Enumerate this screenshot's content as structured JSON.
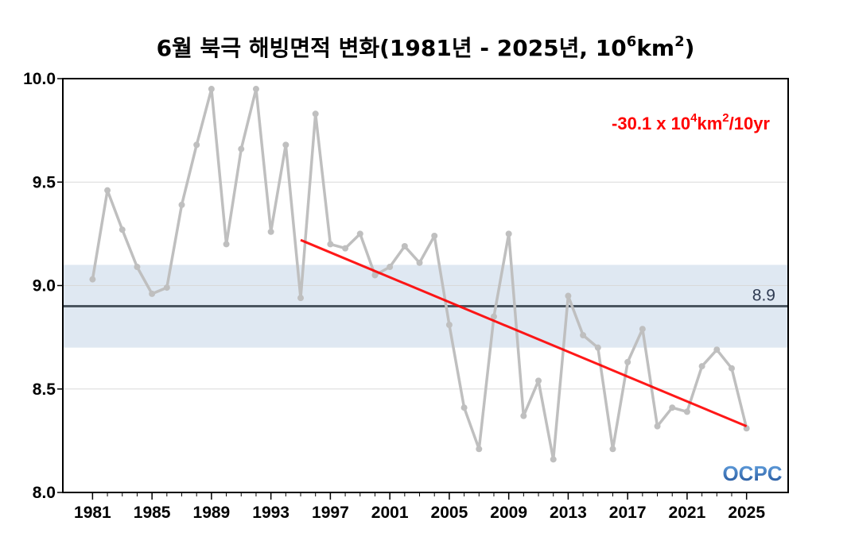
{
  "colors": {
    "series": "#bfbfbf",
    "trend": "#ff0000",
    "reference_line": "#4a5560",
    "band": "#dfe8f2",
    "grid": "#d9d9d9",
    "logo_top": "#6aa9e6",
    "logo_bottom": "#1f4f96"
  },
  "chart_data": {
    "type": "line",
    "title_main": "6월 북극 해빙면적 변화(1981년 - 2025년, 10",
    "title_exp1": "6",
    "title_mid": "km",
    "title_exp2": "2",
    "title_end": ")",
    "x": [
      1981,
      1982,
      1983,
      1984,
      1985,
      1986,
      1987,
      1988,
      1989,
      1990,
      1991,
      1992,
      1993,
      1994,
      1995,
      1996,
      1997,
      1998,
      1999,
      2000,
      2001,
      2002,
      2003,
      2004,
      2005,
      2006,
      2007,
      2008,
      2009,
      2010,
      2011,
      2012,
      2013,
      2014,
      2015,
      2016,
      2017,
      2018,
      2019,
      2020,
      2021,
      2022,
      2023,
      2024,
      2025
    ],
    "values": [
      9.03,
      9.46,
      9.27,
      9.09,
      8.96,
      8.99,
      9.39,
      9.68,
      9.95,
      9.2,
      9.66,
      9.95,
      9.26,
      9.68,
      8.94,
      9.83,
      9.2,
      9.18,
      9.25,
      9.05,
      9.09,
      9.19,
      9.11,
      9.24,
      8.81,
      8.41,
      8.21,
      8.85,
      9.25,
      8.37,
      8.54,
      8.16,
      8.95,
      8.76,
      8.7,
      8.21,
      8.63,
      8.79,
      8.32,
      8.41,
      8.39,
      8.61,
      8.69,
      8.6,
      8.31
    ],
    "xticks": [
      "1981",
      "1985",
      "1989",
      "1993",
      "1997",
      "2001",
      "2005",
      "2009",
      "2013",
      "2017",
      "2021",
      "2025"
    ],
    "yticks": [
      "8.0",
      "8.5",
      "9.0",
      "9.5",
      "10.0"
    ],
    "ylim": [
      8.0,
      10.0
    ],
    "xlim": [
      1979.0,
      2027.8
    ],
    "grid": "horizontal",
    "reference": {
      "value": 8.9,
      "label": "8.9",
      "band": [
        8.7,
        9.1
      ]
    },
    "trend": {
      "x_start": 1995,
      "y_start": 9.22,
      "x_end": 2025,
      "y_end": 8.32,
      "label_main": "-30.1 x 10",
      "label_exp1": "4",
      "label_mid": "km",
      "label_exp2": "2",
      "label_end": "/10yr"
    }
  },
  "logo": {
    "text": "OCPC"
  }
}
